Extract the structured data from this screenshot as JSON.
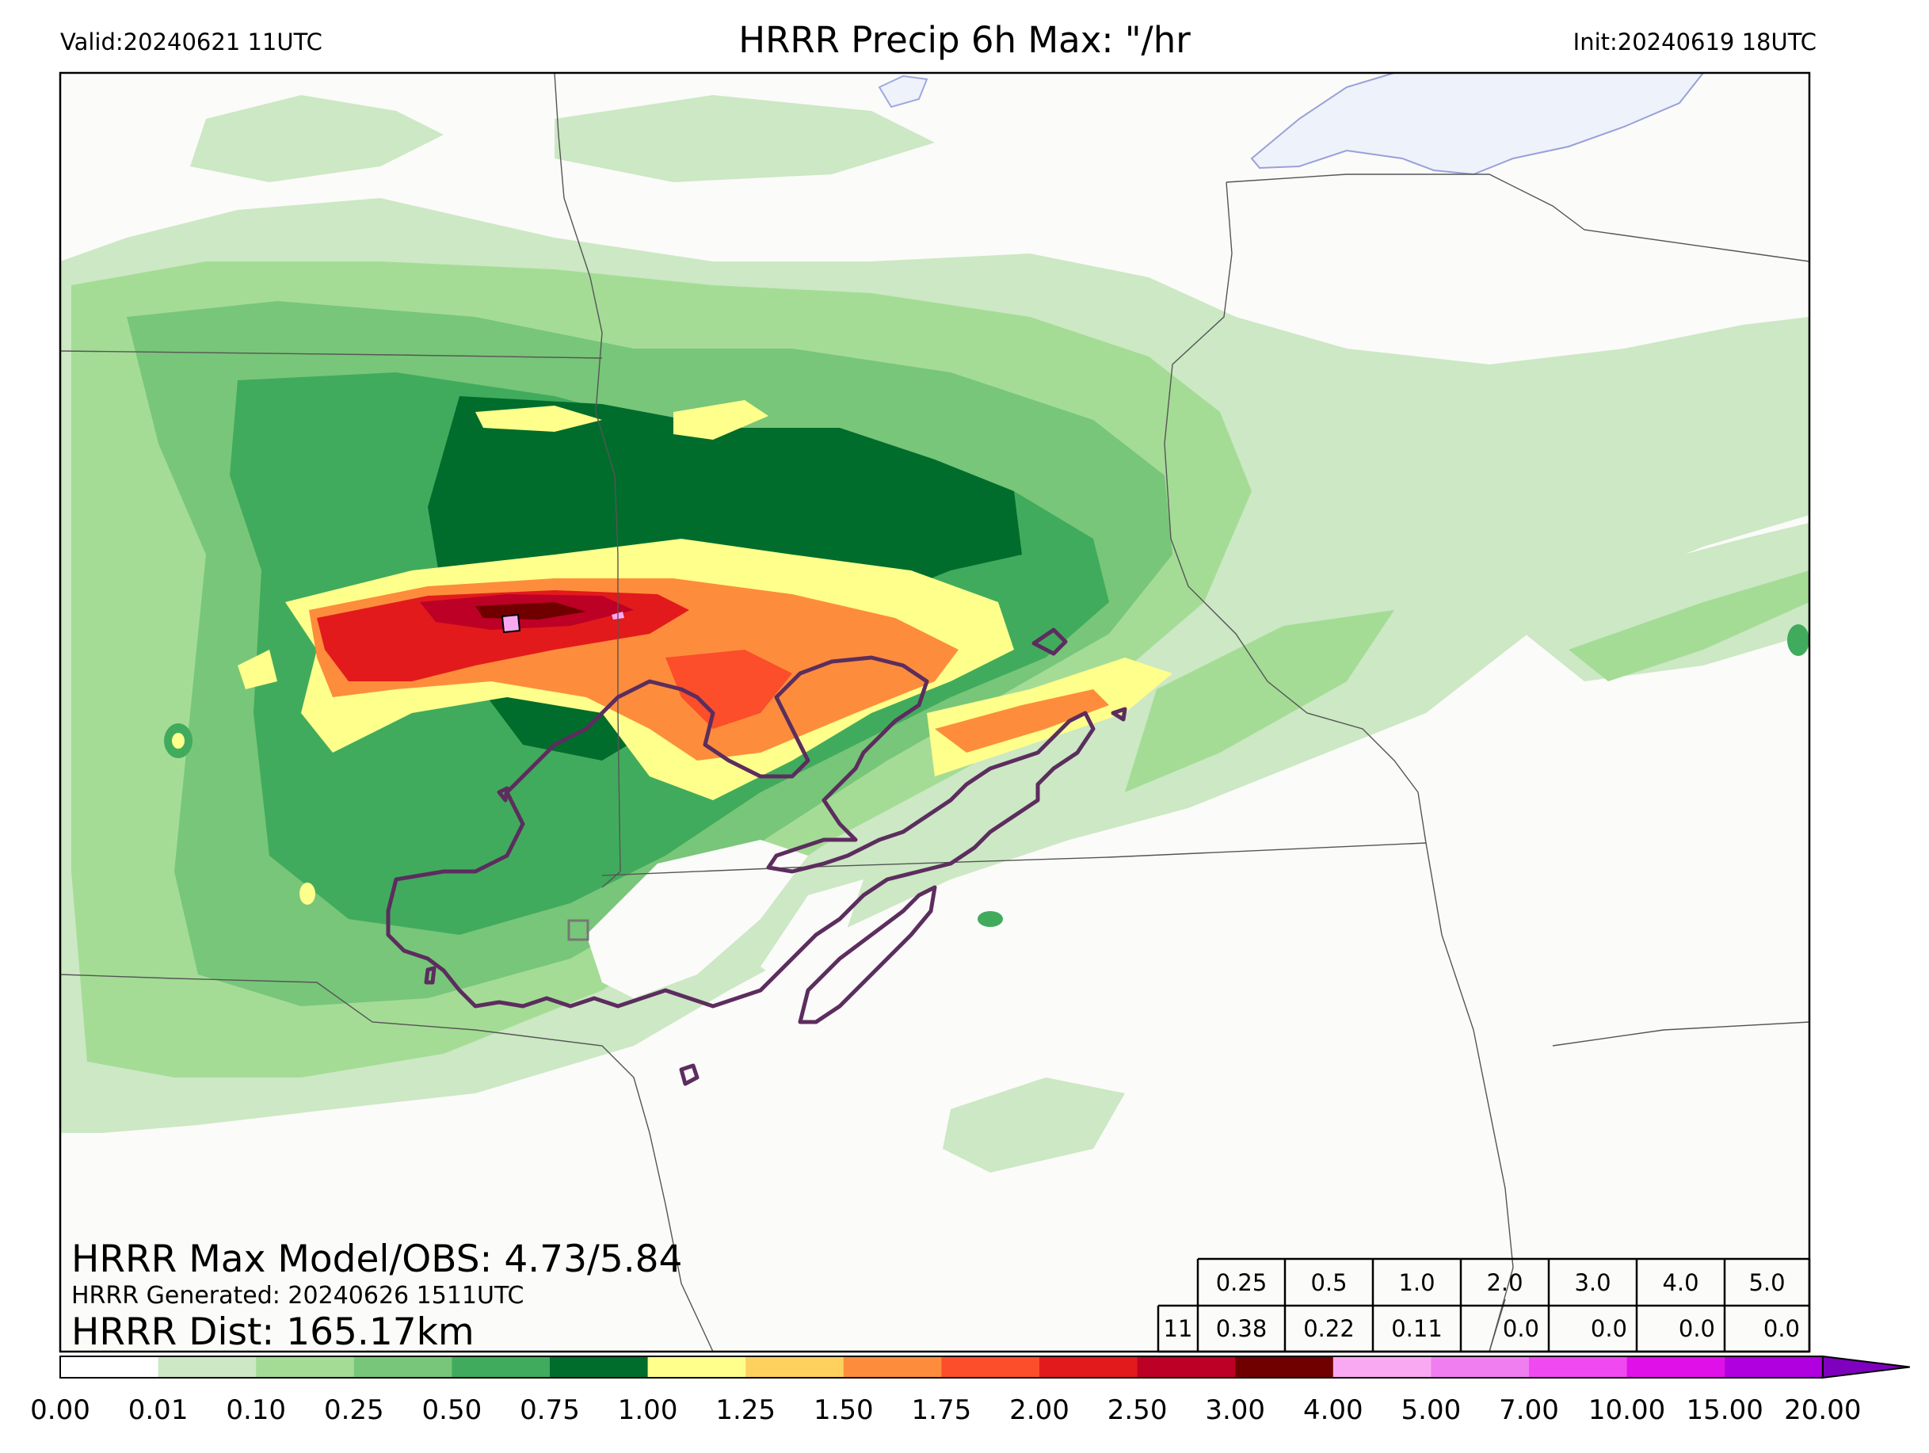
{
  "header": {
    "valid": "Valid:20240621 11UTC",
    "title": "HRRR Precip 6h Max: \"/hr",
    "init": "Init:20240619 18UTC"
  },
  "stats": {
    "max_line": "HRRR Max Model/OBS: 4.73/5.84",
    "generated_line": "HRRR Generated: 20240626 1511UTC",
    "dist_line": "HRRR Dist: 165.17km"
  },
  "threshold_table": {
    "thresholds": [
      "0.25",
      "0.5",
      "1.0",
      "2.0",
      "3.0",
      "4.0",
      "5.0"
    ],
    "row_label": "11",
    "values": [
      "0.38",
      "0.22",
      "0.11",
      "0.0",
      "0.0",
      "0.0",
      "0.0"
    ]
  },
  "colorbar": {
    "ticks": [
      "0.00",
      "0.01",
      "0.10",
      "0.25",
      "0.50",
      "0.75",
      "1.00",
      "1.25",
      "1.50",
      "1.75",
      "2.00",
      "2.50",
      "3.00",
      "4.00",
      "5.00",
      "7.00",
      "10.00",
      "15.00",
      "20.00"
    ],
    "colors": [
      "#ffffff",
      "#cce8c4",
      "#a4dc96",
      "#78c679",
      "#41ab5d",
      "#006d2c",
      "#ffff8c",
      "#fed15f",
      "#fd8d3c",
      "#fc4e2a",
      "#e31a1c",
      "#bd0026",
      "#700000",
      "#f9a9f2",
      "#f07ef0",
      "#f149f1",
      "#e010e8",
      "#b000e0"
    ],
    "extend_color": "#8000c0"
  },
  "colors": {
    "land": "#fbfbf9",
    "water": "#eef2fa",
    "boundary": "#555555",
    "obs_contour": "#5c2d5e"
  }
}
